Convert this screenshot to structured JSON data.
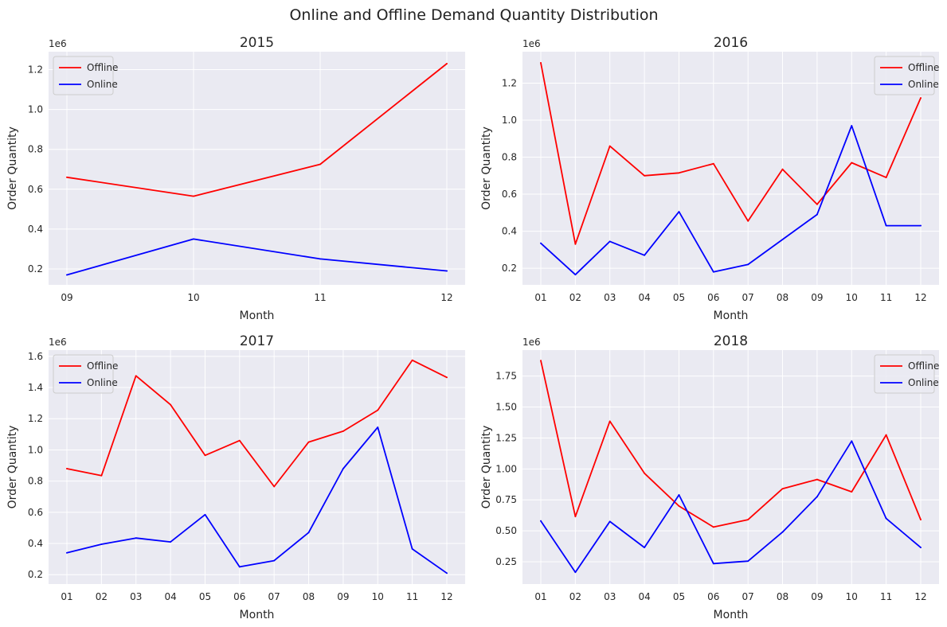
{
  "figure": {
    "title": "Online and Offline Demand Quantity Distribution"
  },
  "colors": {
    "Offline": "#ff0000",
    "Online": "#0000ff",
    "plot_background": "#eaeaf2",
    "grid": "#ffffff"
  },
  "chart_data": [
    {
      "type": "line",
      "title": "2015",
      "xlabel": "Month",
      "ylabel": "Order Quantity",
      "y_offset_text": "1e6",
      "categories": [
        "09",
        "10",
        "11",
        "12"
      ],
      "ylim": [
        0.12,
        1.29
      ],
      "yticks": [
        0.2,
        0.4,
        0.6,
        0.8,
        1.0,
        1.2
      ],
      "ytick_labels": [
        "0.2",
        "0.4",
        "0.6",
        "0.8",
        "1.0",
        "1.2"
      ],
      "legend_position": "top-left",
      "grid": true,
      "series": [
        {
          "name": "Offline",
          "values": [
            0.66,
            0.565,
            0.725,
            1.23
          ]
        },
        {
          "name": "Online",
          "values": [
            0.17,
            0.35,
            0.25,
            0.19
          ]
        }
      ]
    },
    {
      "type": "line",
      "title": "2016",
      "xlabel": "Month",
      "ylabel": "Order Quantity",
      "y_offset_text": "1e6",
      "categories": [
        "01",
        "02",
        "03",
        "04",
        "05",
        "06",
        "07",
        "08",
        "09",
        "10",
        "11",
        "12"
      ],
      "ylim": [
        0.11,
        1.37
      ],
      "yticks": [
        0.2,
        0.4,
        0.6,
        0.8,
        1.0,
        1.2
      ],
      "ytick_labels": [
        "0.2",
        "0.4",
        "0.6",
        "0.8",
        "1.0",
        "1.2"
      ],
      "legend_position": "top-right",
      "grid": true,
      "series": [
        {
          "name": "Offline",
          "values": [
            1.31,
            0.33,
            0.86,
            0.7,
            0.715,
            0.765,
            0.455,
            0.735,
            0.545,
            0.77,
            0.69,
            1.12
          ]
        },
        {
          "name": "Online",
          "values": [
            0.335,
            0.165,
            0.345,
            0.27,
            0.505,
            0.18,
            0.22,
            0.355,
            0.49,
            0.97,
            0.43,
            0.43
          ]
        }
      ]
    },
    {
      "type": "line",
      "title": "2017",
      "xlabel": "Month",
      "ylabel": "Order Quantity",
      "y_offset_text": "1e6",
      "categories": [
        "01",
        "02",
        "03",
        "04",
        "05",
        "06",
        "07",
        "08",
        "09",
        "10",
        "11",
        "12"
      ],
      "ylim": [
        0.14,
        1.64
      ],
      "yticks": [
        0.2,
        0.4,
        0.6,
        0.8,
        1.0,
        1.2,
        1.4,
        1.6
      ],
      "ytick_labels": [
        "0.2",
        "0.4",
        "0.6",
        "0.8",
        "1.0",
        "1.2",
        "1.4",
        "1.6"
      ],
      "legend_position": "top-left",
      "grid": true,
      "series": [
        {
          "name": "Offline",
          "values": [
            0.88,
            0.835,
            1.475,
            1.29,
            0.965,
            1.06,
            0.765,
            1.05,
            1.12,
            1.255,
            1.575,
            1.465
          ]
        },
        {
          "name": "Online",
          "values": [
            0.34,
            0.395,
            0.435,
            0.41,
            0.585,
            0.25,
            0.29,
            0.47,
            0.88,
            1.145,
            0.365,
            0.21
          ]
        }
      ]
    },
    {
      "type": "line",
      "title": "2018",
      "xlabel": "Month",
      "ylabel": "Order Quantity",
      "y_offset_text": "1e6",
      "categories": [
        "01",
        "02",
        "03",
        "04",
        "05",
        "06",
        "07",
        "08",
        "09",
        "10",
        "11",
        "12"
      ],
      "ylim": [
        0.07,
        1.96
      ],
      "yticks": [
        0.25,
        0.5,
        0.75,
        1.0,
        1.25,
        1.5,
        1.75
      ],
      "ytick_labels": [
        "0.25",
        "0.50",
        "0.75",
        "1.00",
        "1.25",
        "1.50",
        "1.75"
      ],
      "legend_position": "top-right",
      "grid": true,
      "series": [
        {
          "name": "Offline",
          "values": [
            1.875,
            0.615,
            1.385,
            0.965,
            0.7,
            0.53,
            0.59,
            0.84,
            0.915,
            0.815,
            1.275,
            0.59
          ]
        },
        {
          "name": "Online",
          "values": [
            0.58,
            0.165,
            0.575,
            0.365,
            0.79,
            0.235,
            0.255,
            0.49,
            0.775,
            1.225,
            0.6,
            0.365
          ]
        }
      ]
    }
  ]
}
